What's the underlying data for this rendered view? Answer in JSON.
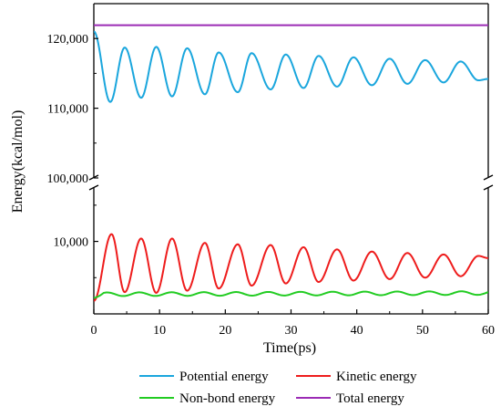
{
  "chart_data": {
    "type": "line",
    "xlabel": "Time(ps)",
    "ylabel": "Energy(kcal/mol)",
    "xlim": [
      0,
      60
    ],
    "x_ticks": [
      "0",
      "10",
      "20",
      "30",
      "40",
      "50",
      "60"
    ],
    "y_axis_broken": true,
    "y_upper_segment": {
      "range": [
        100000,
        125000
      ],
      "ticks": [
        "100,000",
        "110,000",
        "120,000"
      ]
    },
    "y_lower_segment": {
      "range": [
        0,
        17500
      ],
      "ticks": [
        "10,000"
      ]
    },
    "legend_position": "bottom",
    "series": [
      {
        "name": "Potential energy",
        "color": "#1aa6dd",
        "segment": "upper",
        "form": "damped_oscillation",
        "start": 121000,
        "center": 115000,
        "amplitude_start": 4000,
        "amplitude_end": 1600,
        "period": 4.9,
        "first_min_x": 2.5,
        "approx_peaks": [
          [
            4.7,
            118700
          ],
          [
            9.5,
            118800
          ],
          [
            14.2,
            118600
          ],
          [
            19.0,
            118000
          ],
          [
            24.0,
            117900
          ],
          [
            29.2,
            117700
          ],
          [
            34.2,
            117500
          ],
          [
            39.5,
            117300
          ],
          [
            45.0,
            117100
          ],
          [
            50.4,
            116900
          ],
          [
            55.8,
            116700
          ]
        ],
        "approx_troughs": [
          [
            2.5,
            110900
          ],
          [
            7.2,
            111500
          ],
          [
            11.9,
            111700
          ],
          [
            16.9,
            112000
          ],
          [
            21.9,
            112300
          ],
          [
            26.9,
            112700
          ],
          [
            31.9,
            112900
          ],
          [
            37.0,
            113100
          ],
          [
            42.3,
            113300
          ],
          [
            47.7,
            113500
          ],
          [
            53.2,
            113700
          ],
          [
            58.5,
            114000
          ]
        ],
        "end_value": 114200
      },
      {
        "name": "Kinetic energy",
        "color": "#ee1c1c",
        "segment": "lower",
        "form": "damped_oscillation",
        "start": 1800,
        "center": 6800,
        "approx_peaks": [
          [
            2.7,
            11000
          ],
          [
            7.2,
            10400
          ],
          [
            11.9,
            10400
          ],
          [
            16.9,
            9800
          ],
          [
            21.9,
            9600
          ],
          [
            26.9,
            9500
          ],
          [
            31.9,
            9200
          ],
          [
            37.0,
            8900
          ],
          [
            42.3,
            8600
          ],
          [
            47.7,
            8400
          ],
          [
            53.2,
            8200
          ],
          [
            58.5,
            8000
          ]
        ],
        "approx_troughs": [
          [
            4.7,
            3000
          ],
          [
            9.5,
            2900
          ],
          [
            14.2,
            3200
          ],
          [
            19.0,
            3500
          ],
          [
            24.0,
            3900
          ],
          [
            29.2,
            4200
          ],
          [
            34.2,
            4400
          ],
          [
            39.5,
            4600
          ],
          [
            45.0,
            4800
          ],
          [
            50.4,
            5000
          ],
          [
            55.8,
            5200
          ]
        ],
        "end_value": 7700
      },
      {
        "name": "Non-bond energy",
        "color": "#22cc22",
        "segment": "lower",
        "form": "small_oscillation",
        "start": 2200,
        "center": 2700,
        "amplitude": 250,
        "period": 4.9,
        "end_value": 3000
      },
      {
        "name": "Total energy",
        "color": "#9b2bb5",
        "segment": "upper",
        "form": "constant",
        "value": 121900
      }
    ]
  }
}
